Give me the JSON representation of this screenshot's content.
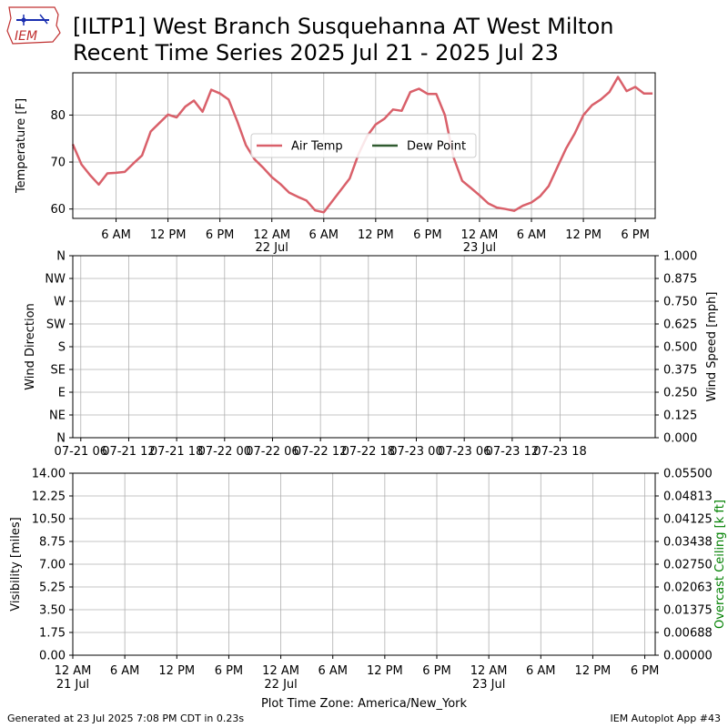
{
  "title_line1": "[ILTP1] West Branch Susquehanna  AT West Milton",
  "title_line2": "Recent Time Series 2025 Jul 21 - 2025 Jul 23",
  "logo_text": "IEM",
  "footer_left": "Generated at 23 Jul 2025 7:08 PM CDT in 0.23s",
  "footer_right": "IEM Autoplot App #43",
  "colors": {
    "air_temp": "#d9606a",
    "dew_point": "#2f5a2f",
    "ceiling_label": "#008000",
    "grid": "#b0b0b0"
  },
  "chart_data": [
    {
      "type": "line",
      "ylabel": "Temperature [F]",
      "ylim": [
        58,
        89
      ],
      "yticks": [
        "60",
        "70",
        "80"
      ],
      "yticks_values": [
        60,
        70,
        80
      ],
      "x_hours_range": [
        1,
        68.3
      ],
      "xticks": [
        {
          "hour": 6,
          "label": "6 AM",
          "sub": ""
        },
        {
          "hour": 12,
          "label": "12 PM",
          "sub": ""
        },
        {
          "hour": 18,
          "label": "6 PM",
          "sub": ""
        },
        {
          "hour": 24,
          "label": "12 AM",
          "sub": "22 Jul"
        },
        {
          "hour": 30,
          "label": "6 AM",
          "sub": ""
        },
        {
          "hour": 36,
          "label": "12 PM",
          "sub": ""
        },
        {
          "hour": 42,
          "label": "6 PM",
          "sub": ""
        },
        {
          "hour": 48,
          "label": "12 AM",
          "sub": "23 Jul"
        },
        {
          "hour": 54,
          "label": "6 AM",
          "sub": ""
        },
        {
          "hour": 60,
          "label": "12 PM",
          "sub": ""
        },
        {
          "hour": 66,
          "label": "6 PM",
          "sub": ""
        }
      ],
      "legend": {
        "placement": "center",
        "entries": [
          "Air Temp",
          "Dew Point"
        ]
      },
      "grid": true,
      "series": [
        {
          "name": "Air Temp",
          "color_key": "air_temp",
          "hours": [
            1,
            2,
            3,
            4,
            5,
            6,
            7,
            8,
            9,
            10,
            11,
            12,
            13,
            14,
            15,
            16,
            17,
            18,
            19,
            20,
            21,
            22,
            23,
            24,
            25,
            26,
            27,
            28,
            29,
            30,
            31,
            32,
            33,
            34,
            35,
            36,
            37,
            38,
            39,
            40,
            41,
            42,
            43,
            44,
            45,
            46,
            47,
            48,
            49,
            50,
            51,
            52,
            53,
            54,
            55,
            56,
            57,
            58,
            59,
            60,
            61,
            62,
            63,
            64,
            65,
            66,
            67,
            68
          ],
          "values": [
            73.8,
            69.5,
            67.2,
            65.2,
            67.6,
            67.7,
            67.9,
            69.7,
            71.4,
            76.5,
            78.3,
            80.1,
            79.5,
            81.8,
            83.1,
            80.7,
            85.4,
            84.6,
            83.3,
            78.7,
            73.6,
            70.6,
            68.8,
            66.8,
            65.3,
            63.5,
            62.6,
            61.8,
            59.7,
            59.3,
            61.7,
            64.1,
            66.5,
            71.6,
            75.5,
            78.0,
            79.2,
            81.2,
            80.9,
            84.9,
            85.6,
            84.5,
            84.5,
            80.0,
            71.0,
            66.0,
            64.5,
            62.9,
            61.2,
            60.3,
            60.0,
            59.6,
            60.7,
            61.4,
            62.7,
            64.9,
            68.9,
            72.9,
            76.1,
            80.0,
            82.1,
            83.3,
            84.9,
            88.1,
            85.1,
            86.0,
            84.6,
            84.6
          ]
        },
        {
          "name": "Dew Point",
          "color_key": "dew_point",
          "hours": [],
          "values": []
        }
      ]
    },
    {
      "type": "line",
      "ylabel": "Wind Direction",
      "ylabel_right": "Wind Speed [mph]",
      "yticks": [
        "N",
        "NE",
        "E",
        "SE",
        "S",
        "SW",
        "W",
        "NW",
        "N"
      ],
      "yticks_right": [
        "0.000",
        "0.125",
        "0.250",
        "0.375",
        "0.500",
        "0.625",
        "0.750",
        "0.875",
        "1.000"
      ],
      "ylim_right": [
        0,
        1
      ],
      "x_hours_range": [
        -1,
        71.9
      ],
      "xticks": [
        {
          "hour": 0,
          "label": "07-21 06"
        },
        {
          "hour": 6,
          "label": "07-21 12"
        },
        {
          "hour": 12,
          "label": "07-21 18"
        },
        {
          "hour": 18,
          "label": "07-22 00"
        },
        {
          "hour": 24,
          "label": "07-22 06"
        },
        {
          "hour": 30,
          "label": "07-22 12"
        },
        {
          "hour": 36,
          "label": "07-22 18"
        },
        {
          "hour": 42,
          "label": "07-23 00"
        },
        {
          "hour": 48,
          "label": "07-23 06"
        },
        {
          "hour": 54,
          "label": "07-23 12"
        },
        {
          "hour": 60,
          "label": "07-23 18"
        }
      ],
      "grid": true,
      "series": []
    },
    {
      "type": "line",
      "ylabel": "Visibility [miles]",
      "ylabel_right": "Overcast Ceiling [k ft]",
      "ylim": [
        0,
        14
      ],
      "yticks": [
        "0.00",
        "1.75",
        "3.50",
        "5.25",
        "7.00",
        "8.75",
        "10.50",
        "12.25",
        "14.00"
      ],
      "ylim_right": [
        0,
        0.055
      ],
      "yticks_right": [
        "0.00000",
        "0.00688",
        "0.01375",
        "0.02063",
        "0.02750",
        "0.03438",
        "0.04125",
        "0.04813",
        "0.05500"
      ],
      "xlabel": "Plot Time Zone: America/New_York",
      "x_hours_range": [
        0,
        67.2
      ],
      "xticks": [
        {
          "hour": 0,
          "label": "12 AM",
          "sub": "21 Jul"
        },
        {
          "hour": 6,
          "label": "6 AM",
          "sub": ""
        },
        {
          "hour": 12,
          "label": "12 PM",
          "sub": ""
        },
        {
          "hour": 18,
          "label": "6 PM",
          "sub": ""
        },
        {
          "hour": 24,
          "label": "12 AM",
          "sub": "22 Jul"
        },
        {
          "hour": 30,
          "label": "6 AM",
          "sub": ""
        },
        {
          "hour": 36,
          "label": "12 PM",
          "sub": ""
        },
        {
          "hour": 42,
          "label": "6 PM",
          "sub": ""
        },
        {
          "hour": 48,
          "label": "12 AM",
          "sub": "23 Jul"
        },
        {
          "hour": 54,
          "label": "6 AM",
          "sub": ""
        },
        {
          "hour": 60,
          "label": "12 PM",
          "sub": ""
        },
        {
          "hour": 66,
          "label": "6 PM",
          "sub": ""
        }
      ],
      "grid": true,
      "series": []
    }
  ]
}
